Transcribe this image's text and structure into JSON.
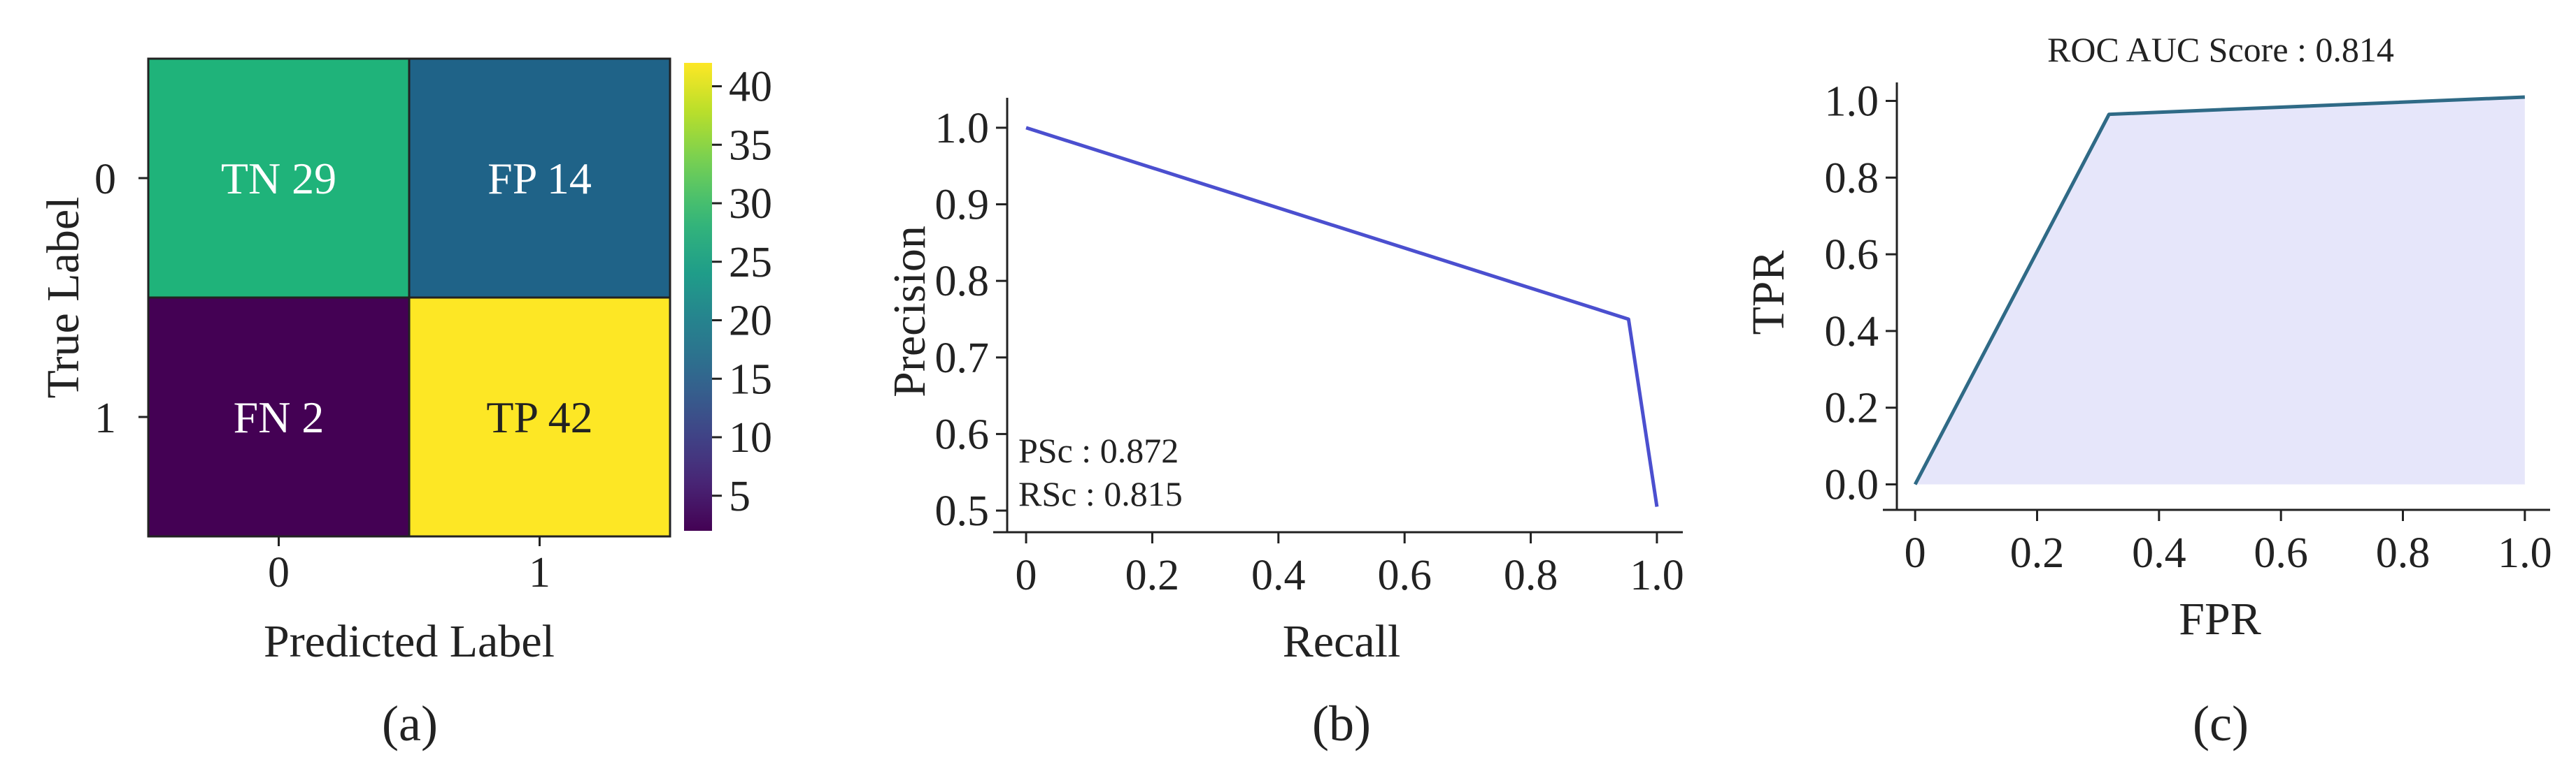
{
  "panels": [
    {
      "caption": "(a)",
      "chart_data": {
        "type": "heatmap",
        "xlabel": "Predicted Label",
        "ylabel": "True Label",
        "x_categories": [
          "0",
          "1"
        ],
        "y_categories": [
          "0",
          "1"
        ],
        "cells": [
          [
            {
              "label": "TN 29",
              "value": 29
            },
            {
              "label": "FP 14",
              "value": 14
            }
          ],
          [
            {
              "label": "FN 2",
              "value": 2
            },
            {
              "label": "TP 42",
              "value": 42
            }
          ]
        ],
        "colormap": "viridis",
        "colorbar_range": [
          2,
          42
        ],
        "colorbar_ticks": [
          "5",
          "10",
          "15",
          "20",
          "25",
          "30",
          "35",
          "40"
        ],
        "cell_colors": [
          "#1fb37a",
          "#1f6388",
          "#440154",
          "#fde725"
        ]
      }
    },
    {
      "caption": "(b)",
      "chart_data": {
        "type": "line",
        "xlabel": "Recall",
        "ylabel": "Precision",
        "x": [
          0.0,
          0.955,
          1.0
        ],
        "y": [
          1.0,
          0.75,
          0.505
        ],
        "xlim": [
          -0.03,
          1.03
        ],
        "ylim": [
          0.49,
          1.03
        ],
        "x_ticks": [
          "0",
          "0.2",
          "0.4",
          "0.6",
          "0.8",
          "1.0"
        ],
        "y_ticks": [
          "0.5",
          "0.6",
          "0.7",
          "0.8",
          "0.9",
          "1.0"
        ],
        "annotations": [
          "PSc : 0.872",
          "RSc : 0.815"
        ],
        "line_color": "#4b4fcf"
      }
    },
    {
      "caption": "(c)",
      "chart_data": {
        "type": "area",
        "title": "ROC AUC Score : 0.814",
        "xlabel": "FPR",
        "ylabel": "TPR",
        "x": [
          0.0,
          0.318,
          1.0
        ],
        "y": [
          0.0,
          0.965,
          1.01
        ],
        "xlim": [
          -0.03,
          1.03
        ],
        "ylim": [
          -0.03,
          1.03
        ],
        "x_ticks": [
          "0",
          "0.2",
          "0.4",
          "0.6",
          "0.8",
          "1.0"
        ],
        "y_ticks": [
          "0.0",
          "0.2",
          "0.4",
          "0.6",
          "0.8",
          "1.0"
        ],
        "line_color": "#2f6a86",
        "fill_color": "#e6e6fa"
      }
    }
  ]
}
